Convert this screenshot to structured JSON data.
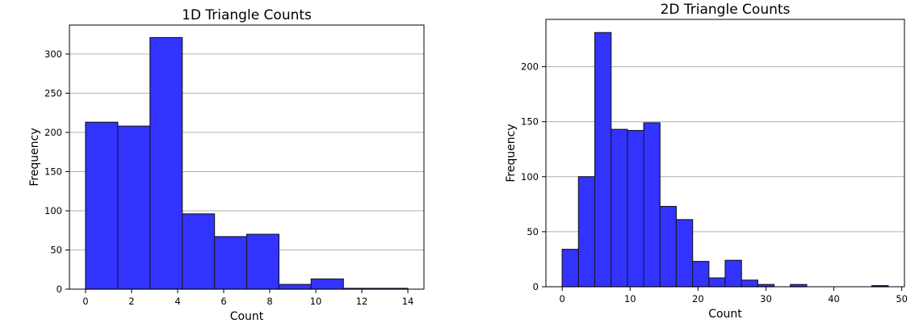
{
  "chart_data": [
    {
      "type": "bar",
      "title": "1D Triangle Counts",
      "xlabel": "Count",
      "ylabel": "Frequency",
      "xlim": [
        -0.7,
        14.7
      ],
      "ylim": [
        0,
        337
      ],
      "xticks": [
        0,
        2,
        4,
        6,
        8,
        10,
        12,
        14
      ],
      "yticks": [
        0,
        50,
        100,
        150,
        200,
        250,
        300
      ],
      "grid": "y",
      "color": "#3333ff",
      "edgecolor": "#1a1a33",
      "bin_edges": [
        0,
        1.4,
        2.8,
        4.2,
        5.6,
        7.0,
        8.4,
        9.8,
        11.2,
        12.6,
        14.0
      ],
      "values": [
        213,
        208,
        321,
        96,
        67,
        70,
        6,
        13,
        1,
        1
      ]
    },
    {
      "type": "bar",
      "title": "2D Triangle Counts",
      "xlabel": "Count",
      "ylabel": "Frequency",
      "xlim": [
        -2.4,
        50.4
      ],
      "ylim": [
        0,
        243
      ],
      "xticks": [
        0,
        10,
        20,
        30,
        40,
        50
      ],
      "yticks": [
        0,
        50,
        100,
        150,
        200
      ],
      "grid": "y",
      "color": "#3333ff",
      "edgecolor": "#1a1a33",
      "bin_edges": [
        0,
        2.4,
        4.8,
        7.2,
        9.6,
        12.0,
        14.4,
        16.8,
        19.2,
        21.6,
        24.0,
        26.4,
        28.8,
        31.2,
        33.6,
        36.0,
        38.4,
        40.8,
        43.2,
        45.6,
        48.0
      ],
      "values": [
        34,
        100,
        231,
        143,
        142,
        149,
        73,
        61,
        23,
        8,
        24,
        6,
        2,
        0,
        2,
        0,
        0,
        0,
        0,
        1
      ]
    }
  ]
}
